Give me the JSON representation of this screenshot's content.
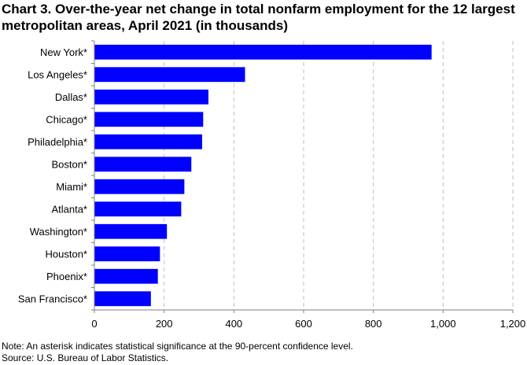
{
  "chart_data": {
    "type": "bar",
    "orientation": "horizontal",
    "title": "Chart 3. Over-the-year net change in total nonfarm employment for the 12 largest metropolitan areas, April 2021 (in thousands)",
    "categories": [
      "New York*",
      "Los Angeles*",
      "Dallas*",
      "Chicago*",
      "Philadelphia*",
      "Boston*",
      "Miami*",
      "Atlanta*",
      "Washington*",
      "Houston*",
      "Phoenix*",
      "San Francisco*"
    ],
    "values": [
      967,
      432,
      327,
      312,
      309,
      278,
      258,
      249,
      208,
      188,
      182,
      162
    ],
    "xlim": [
      0,
      1200
    ],
    "xticks": [
      0,
      200,
      400,
      600,
      800,
      1000,
      1200
    ],
    "xtick_labels": [
      "0",
      "200",
      "400",
      "600",
      "800",
      "1,000",
      "1,200"
    ],
    "grid": "vertical dashed",
    "bar_color": "#0000FF",
    "xlabel": "",
    "ylabel": ""
  },
  "footnotes": {
    "note": "Note: An asterisk indicates statistical significance at the 90-percent confidence level.",
    "source": "Source: U.S. Bureau of Labor Statistics."
  }
}
